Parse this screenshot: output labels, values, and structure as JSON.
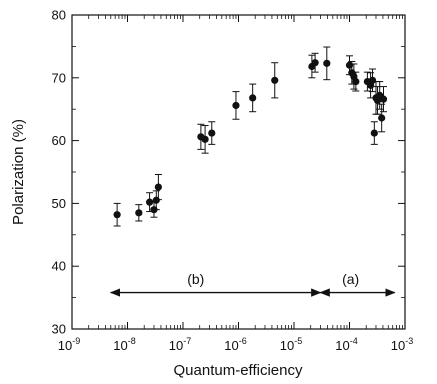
{
  "chart_data": {
    "type": "scatter",
    "title": "",
    "xlabel": "Quantum-efficiency",
    "ylabel": "Polarization (%)",
    "xscale": "log",
    "xlim": [
      1e-09,
      0.001
    ],
    "ylim": [
      30,
      80
    ],
    "x_ticks": [
      {
        "base": "10",
        "exp": "-9"
      },
      {
        "base": "10",
        "exp": "-8"
      },
      {
        "base": "10",
        "exp": "-7"
      },
      {
        "base": "10",
        "exp": "-6"
      },
      {
        "base": "10",
        "exp": "-5"
      },
      {
        "base": "10",
        "exp": "-4"
      },
      {
        "base": "10",
        "exp": "-3"
      }
    ],
    "y_ticks": [
      "30",
      "40",
      "50",
      "60",
      "70",
      "80"
    ],
    "grid": false,
    "legend": "none",
    "marker_color": "#111111",
    "series": [
      {
        "points": [
          {
            "x": 6.5e-09,
            "y": 48.2,
            "err": 1.8
          },
          {
            "x": 1.6e-08,
            "y": 48.5,
            "err": 1.3
          },
          {
            "x": 2.5e-08,
            "y": 50.2,
            "err": 1.5
          },
          {
            "x": 3e-08,
            "y": 49.0,
            "err": 1.2
          },
          {
            "x": 3.3e-08,
            "y": 50.5,
            "err": 1.5
          },
          {
            "x": 3.6e-08,
            "y": 52.6,
            "err": 2.0
          },
          {
            "x": 2.1e-07,
            "y": 60.6,
            "err": 2.0
          },
          {
            "x": 2.5e-07,
            "y": 60.2,
            "err": 2.2
          },
          {
            "x": 3.3e-07,
            "y": 61.2,
            "err": 1.8
          },
          {
            "x": 9e-07,
            "y": 65.6,
            "err": 2.2
          },
          {
            "x": 1.8e-06,
            "y": 66.8,
            "err": 2.2
          },
          {
            "x": 4.5e-06,
            "y": 69.6,
            "err": 2.8
          },
          {
            "x": 2.1e-05,
            "y": 71.8,
            "err": 1.8
          },
          {
            "x": 2.4e-05,
            "y": 72.4,
            "err": 1.5
          },
          {
            "x": 3.9e-05,
            "y": 72.3,
            "err": 2.6
          },
          {
            "x": 0.0001,
            "y": 72.0,
            "err": 1.5
          },
          {
            "x": 0.00011,
            "y": 70.8,
            "err": 1.8
          },
          {
            "x": 0.00012,
            "y": 70.2,
            "err": 2.0
          },
          {
            "x": 0.00013,
            "y": 69.4,
            "err": 1.5
          },
          {
            "x": 0.00021,
            "y": 69.4,
            "err": 1.5
          },
          {
            "x": 0.00024,
            "y": 68.8,
            "err": 2.0
          },
          {
            "x": 0.00026,
            "y": 69.6,
            "err": 1.8
          },
          {
            "x": 0.00028,
            "y": 61.2,
            "err": 1.8
          },
          {
            "x": 0.0003,
            "y": 66.8,
            "err": 2.6
          },
          {
            "x": 0.00032,
            "y": 66.4,
            "err": 2.2
          },
          {
            "x": 0.00035,
            "y": 67.2,
            "err": 2.2
          },
          {
            "x": 0.00038,
            "y": 63.6,
            "err": 2.2
          },
          {
            "x": 0.00041,
            "y": 66.6,
            "err": 2.0
          }
        ]
      }
    ],
    "annotations": [
      {
        "label": "(b)",
        "label_x": 1.7e-07,
        "label_y": 37.2,
        "arrow_y": 35.8,
        "arrow_from": 5e-09,
        "arrow_to": 3e-05
      },
      {
        "label": "(a)",
        "label_x": 0.000105,
        "label_y": 37.2,
        "arrow_y": 35.8,
        "arrow_from": 3e-05,
        "arrow_to": 0.00065
      }
    ]
  }
}
